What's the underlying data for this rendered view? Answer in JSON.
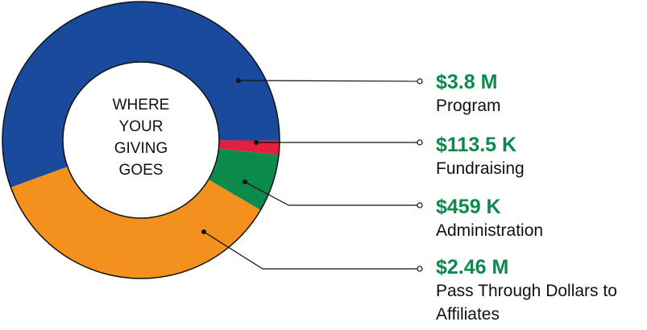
{
  "chart_data": {
    "type": "donut",
    "center_text": [
      "WHERE",
      "YOUR",
      "GIVING",
      "GOES"
    ],
    "categories": [
      "Program",
      "Fundraising",
      "Administration",
      "Pass Through Dollars to Affiliates"
    ],
    "values": [
      3800000,
      113500,
      459000,
      2460000
    ],
    "value_labels": [
      "$3.8 M",
      "$113.5 K",
      "$459 K",
      "$2.46 M"
    ],
    "colors": [
      "#1a4a9c",
      "#e3203c",
      "#0b8a4c",
      "#f4901e"
    ]
  }
}
